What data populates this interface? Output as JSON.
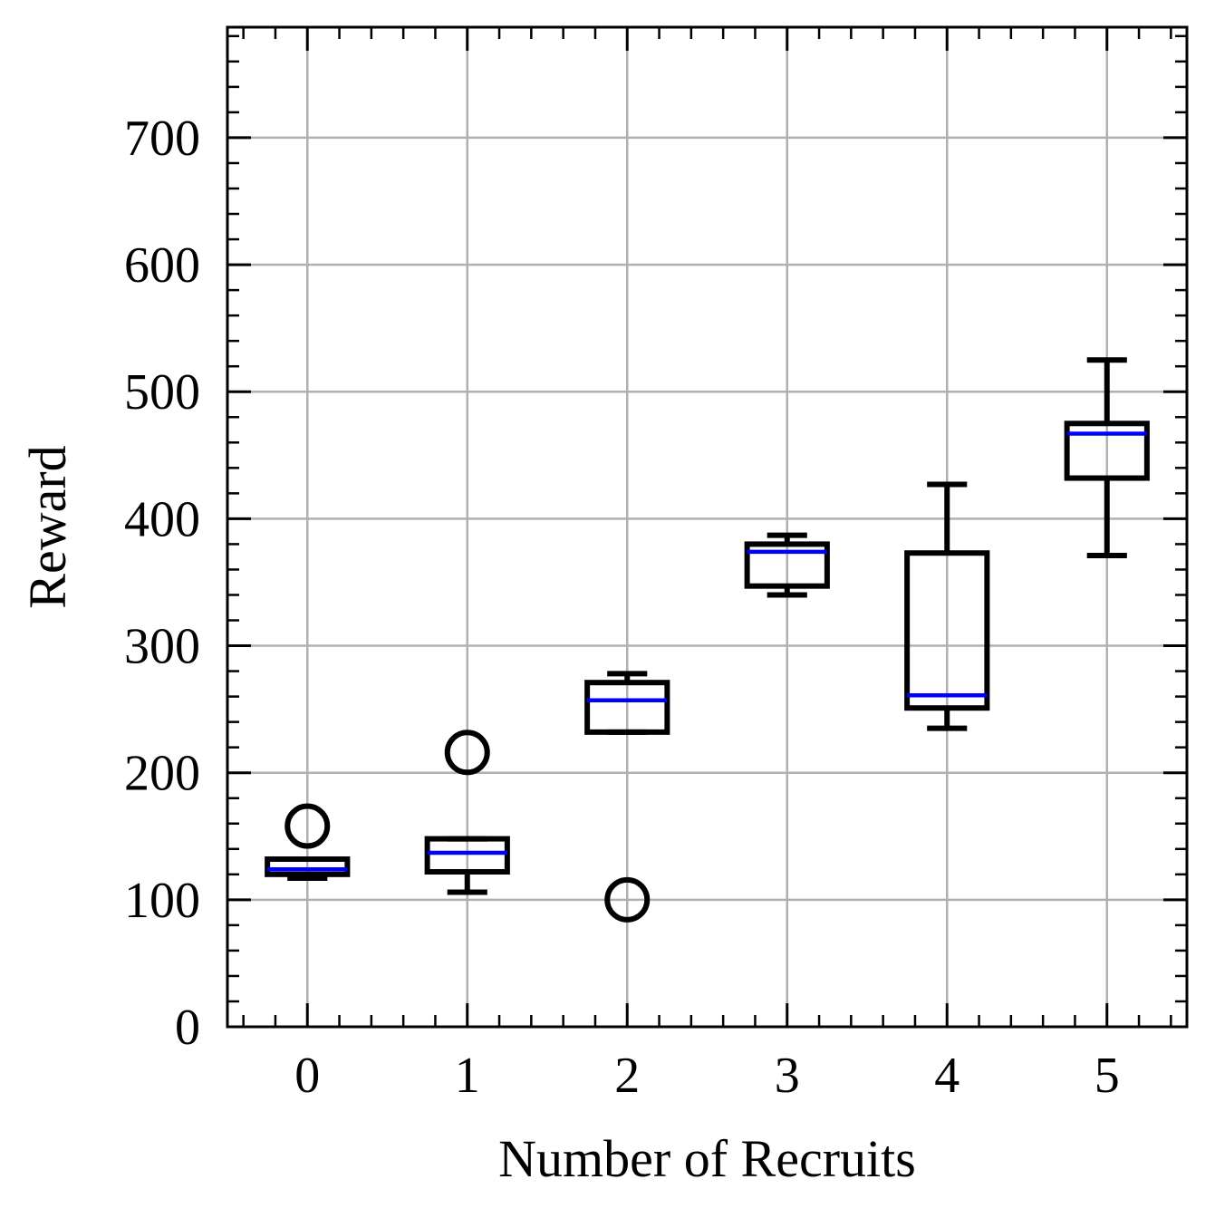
{
  "chart_data": {
    "type": "box",
    "xlabel": "Number of Recruits",
    "ylabel": "Reward",
    "categories": [
      "0",
      "1",
      "2",
      "3",
      "4",
      "5"
    ],
    "xticks": [
      "0",
      "1",
      "2",
      "3",
      "4",
      "5"
    ],
    "yticks": [
      "0",
      "100",
      "200",
      "300",
      "400",
      "500",
      "600",
      "700"
    ],
    "ylim": [
      0,
      787
    ],
    "grid": true,
    "colors": {
      "box": "#000000",
      "median": "#0000ff",
      "grid": "#b0b0b0"
    },
    "boxes": [
      {
        "category": "0",
        "whisker_low": 117,
        "q1": 120,
        "median": 124,
        "q3": 132,
        "whisker_high": 132,
        "fliers": [
          158
        ]
      },
      {
        "category": "1",
        "whisker_low": 106,
        "q1": 122,
        "median": 137,
        "q3": 148,
        "whisker_high": 148,
        "fliers": [
          216
        ]
      },
      {
        "category": "2",
        "whisker_low": 232,
        "q1": 232,
        "median": 257,
        "q3": 271,
        "whisker_high": 278,
        "fliers": [
          100
        ]
      },
      {
        "category": "3",
        "whisker_low": 340,
        "q1": 347,
        "median": 374,
        "q3": 380,
        "whisker_high": 387,
        "fliers": []
      },
      {
        "category": "4",
        "whisker_low": 235,
        "q1": 251,
        "median": 261,
        "q3": 373,
        "whisker_high": 427,
        "fliers": []
      },
      {
        "category": "5",
        "whisker_low": 371,
        "q1": 432,
        "median": 467,
        "q3": 475,
        "whisker_high": 525,
        "fliers": []
      }
    ]
  }
}
